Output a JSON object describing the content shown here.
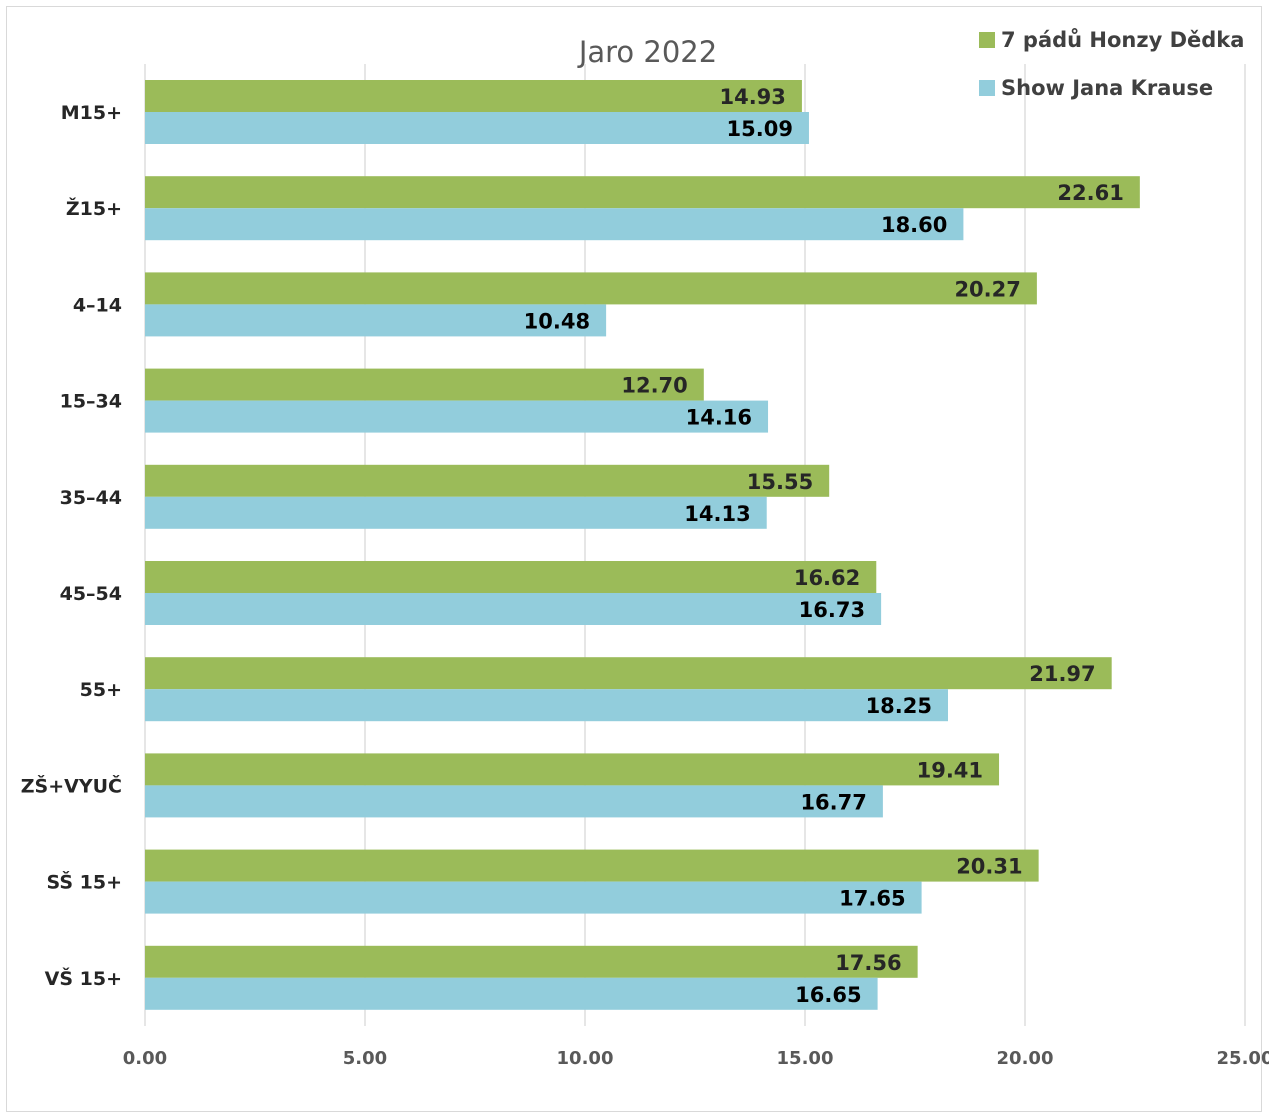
{
  "chart_data": {
    "type": "bar",
    "orientation": "horizontal",
    "title": "Jaro 2022",
    "categories": [
      "M15+",
      "Ž15+",
      "4–14",
      "15–34",
      "35–44",
      "45–54",
      "55+",
      "ZŠ+VYUČ",
      "SŠ 15+",
      "VŠ 15+"
    ],
    "series": [
      {
        "name": "7 pádů Honzy Dědka",
        "color": "#9bbb59",
        "values": [
          14.93,
          22.61,
          20.27,
          12.7,
          15.55,
          16.62,
          21.97,
          19.41,
          20.31,
          17.56
        ]
      },
      {
        "name": "Show Jana Krause",
        "color": "#92cddc",
        "values": [
          15.09,
          18.6,
          10.48,
          14.16,
          14.13,
          16.73,
          18.25,
          16.77,
          17.65,
          16.65
        ]
      }
    ],
    "value_labels": [
      [
        "14.93",
        "22.61",
        "20.27",
        "12.70",
        "15.55",
        "16.62",
        "21.97",
        "19.41",
        "20.31",
        "17.56"
      ],
      [
        "15.09",
        "18.60",
        "10.48",
        "14.16",
        "14.13",
        "16.73",
        "18.25",
        "16.77",
        "17.65",
        "16.65"
      ]
    ],
    "xlim": [
      0,
      25
    ],
    "x_ticks": [
      "0.00",
      "5.00",
      "10.00",
      "15.00",
      "20.00",
      "25.00"
    ],
    "x_tick_values": [
      0,
      5,
      10,
      15,
      20,
      25
    ],
    "grid": true,
    "legend_position": "top-right"
  }
}
